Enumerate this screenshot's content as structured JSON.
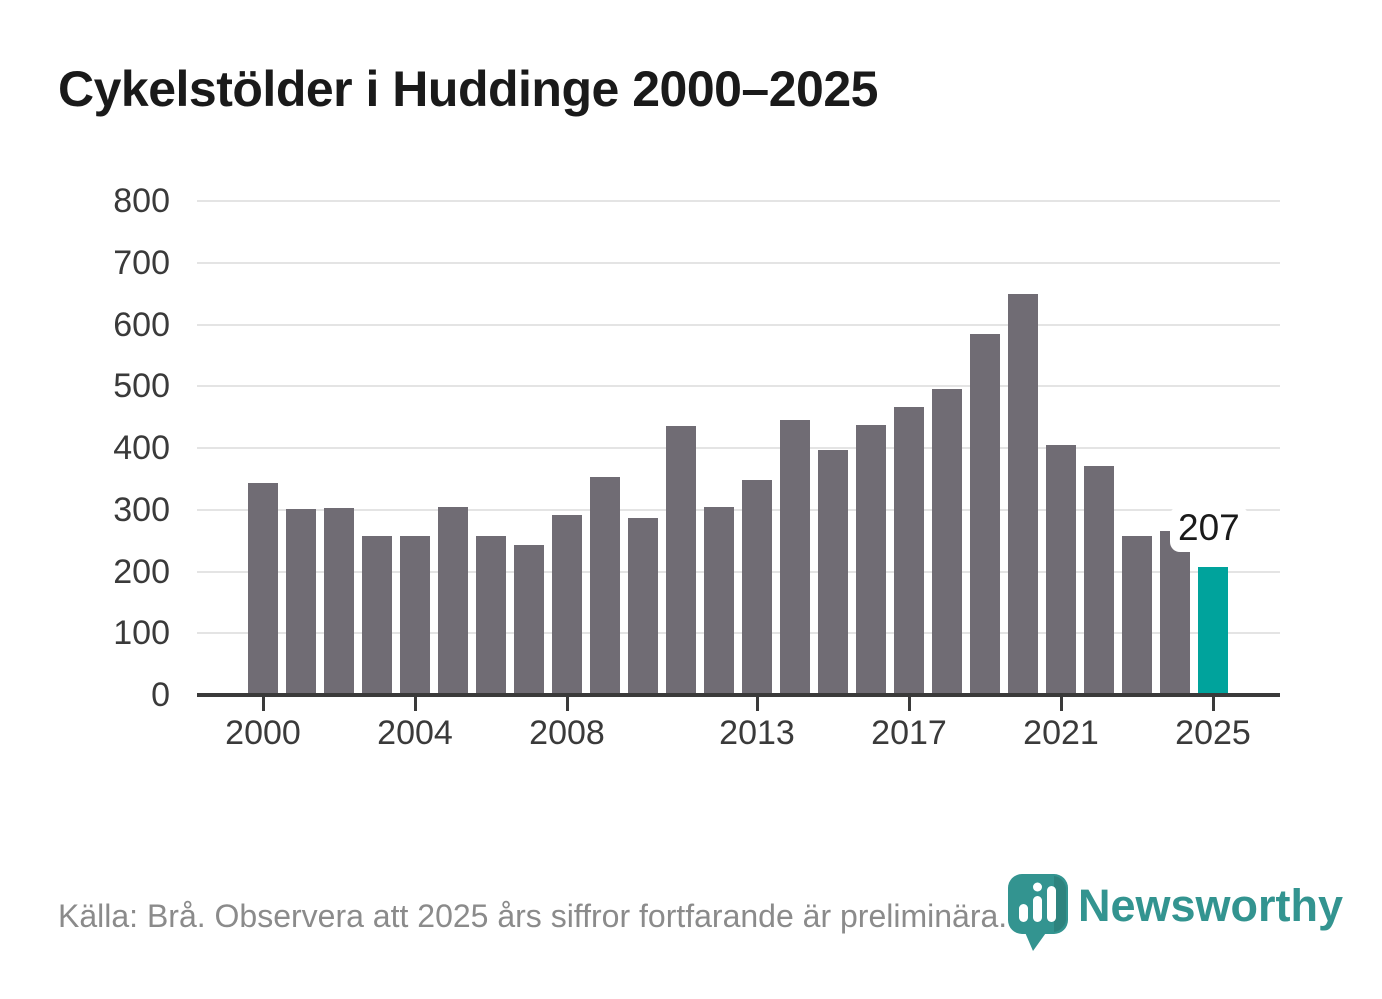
{
  "title": "Cykelstölder i Huddinge 2000–2025",
  "annotation": {
    "label": "207"
  },
  "footer": {
    "source_note": "Källa: Brå. Observera att 2025 års siffror fortfarande är preliminära."
  },
  "branding": {
    "wordmark": "Newsworthy",
    "logo_color": "#339490"
  },
  "colors": {
    "bar": "#706c74",
    "highlight": "#00a39c",
    "gridline": "#e4e4e4",
    "axis": "#3a3a3a",
    "title_text": "#1a1a1a",
    "footer_text": "#8b8b8b"
  },
  "chart_data": {
    "type": "bar",
    "title": "Cykelstölder i Huddinge 2000–2025",
    "x": [
      2000,
      2001,
      2002,
      2003,
      2004,
      2005,
      2006,
      2007,
      2008,
      2009,
      2010,
      2011,
      2012,
      2013,
      2014,
      2015,
      2016,
      2017,
      2018,
      2019,
      2020,
      2021,
      2022,
      2023,
      2024,
      2025
    ],
    "values": [
      344,
      302,
      303,
      257,
      257,
      304,
      257,
      243,
      291,
      353,
      287,
      435,
      304,
      349,
      445,
      397,
      437,
      466,
      495,
      585,
      649,
      405,
      371,
      258,
      265,
      207
    ],
    "highlight_year": 2025,
    "highlight_value_label": "207",
    "xlabel": "",
    "ylabel": "",
    "ylim": [
      0,
      800
    ],
    "y_ticks": [
      0,
      100,
      200,
      300,
      400,
      500,
      600,
      700,
      800
    ],
    "x_tick_labels": [
      "2000",
      "2004",
      "2008",
      "2013",
      "2017",
      "2021",
      "2025"
    ],
    "grid": "horizontal",
    "legend": "none"
  }
}
